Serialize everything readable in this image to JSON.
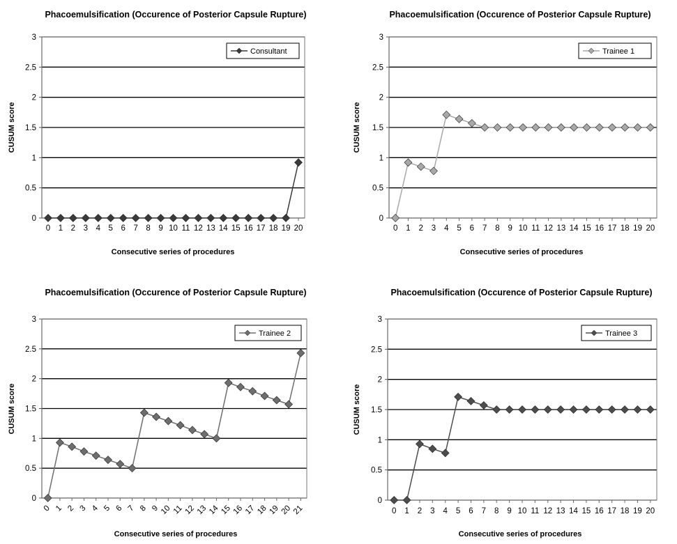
{
  "chart_data": [
    {
      "type": "line",
      "title": "Phacoemulsification (Occurence of Posterior Capsule Rupture)",
      "xlabel": "Consecutive series of procedures",
      "ylabel": "CUSUM score",
      "ylim": [
        0,
        3
      ],
      "yticks": [
        "0",
        "0.5",
        "1",
        "1.5",
        "2",
        "2.5",
        "3"
      ],
      "categories": [
        "0",
        "1",
        "2",
        "3",
        "4",
        "5",
        "6",
        "7",
        "8",
        "9",
        "10",
        "11",
        "12",
        "13",
        "14",
        "15",
        "16",
        "17",
        "18",
        "19",
        "20"
      ],
      "grid": true,
      "legend_position": "top-right",
      "series": [
        {
          "name": "Consultant",
          "color": "#3a3a3a",
          "values": [
            0,
            0,
            0,
            0,
            0,
            0,
            0,
            0,
            0,
            0,
            0,
            0,
            0,
            0,
            0,
            0,
            0,
            0,
            0,
            0,
            0.92
          ]
        }
      ]
    },
    {
      "type": "line",
      "title": "Phacoemulsification (Occurence of Posterior Capsule Rupture)",
      "xlabel": "Consecutive series of procedures",
      "ylabel": "CUSUM  score",
      "ylim": [
        0,
        3
      ],
      "yticks": [
        "0",
        "0.5",
        "1",
        "1.5",
        "2",
        "2.5",
        "3"
      ],
      "categories": [
        "0",
        "1",
        "2",
        "3",
        "4",
        "5",
        "6",
        "7",
        "8",
        "9",
        "10",
        "11",
        "12",
        "13",
        "14",
        "15",
        "16",
        "17",
        "18",
        "19",
        "20"
      ],
      "grid": true,
      "legend_position": "top-right",
      "series": [
        {
          "name": "Trainee 1",
          "color": "#a8a8a8",
          "values": [
            0,
            0.92,
            0.85,
            0.78,
            1.71,
            1.64,
            1.57,
            1.5,
            1.5,
            1.5,
            1.5,
            1.5,
            1.5,
            1.5,
            1.5,
            1.5,
            1.5,
            1.5,
            1.5,
            1.5,
            1.5
          ]
        }
      ]
    },
    {
      "type": "line",
      "title": "Phacoemulsification (Occurence of Posterior Capsule Rupture)",
      "xlabel": "Consecutive series of procedures",
      "ylabel": "CUSUM score",
      "ylim": [
        0,
        3
      ],
      "yticks": [
        "0",
        "0.5",
        "1",
        "1.5",
        "2",
        "2.5",
        "3"
      ],
      "categories": [
        "0",
        "1",
        "2",
        "3",
        "4",
        "5",
        "6",
        "7",
        "8",
        "9",
        "10",
        "11",
        "12",
        "13",
        "14",
        "15",
        "16",
        "17",
        "18",
        "19",
        "20",
        "21"
      ],
      "grid": true,
      "legend_position": "top-right",
      "series": [
        {
          "name": "Trainee 2",
          "color": "#6e6e6e",
          "values": [
            0,
            0.93,
            0.86,
            0.78,
            0.71,
            0.64,
            0.57,
            0.5,
            1.43,
            1.36,
            1.29,
            1.22,
            1.14,
            1.07,
            1.0,
            1.93,
            1.86,
            1.79,
            1.71,
            1.64,
            1.57,
            2.43
          ]
        }
      ]
    },
    {
      "type": "line",
      "title": "Phacoemulsification (Occurence of Posterior Capsule Rupture)",
      "xlabel": "Consecutive series of procedures",
      "ylabel": "CUSUM score",
      "ylim": [
        0,
        3
      ],
      "yticks": [
        "0",
        "0.5",
        "1",
        "1.5",
        "2",
        "2.5",
        "3"
      ],
      "categories": [
        "0",
        "1",
        "2",
        "3",
        "4",
        "5",
        "6",
        "7",
        "8",
        "9",
        "10",
        "11",
        "12",
        "13",
        "14",
        "15",
        "16",
        "17",
        "18",
        "19",
        "20"
      ],
      "grid": true,
      "legend_position": "top-right",
      "series": [
        {
          "name": "Trainee 3",
          "color": "#4d4d4d",
          "values": [
            0,
            0,
            0.93,
            0.85,
            0.78,
            1.71,
            1.64,
            1.57,
            1.5,
            1.5,
            1.5,
            1.5,
            1.5,
            1.5,
            1.5,
            1.5,
            1.5,
            1.5,
            1.5,
            1.5,
            1.5
          ]
        }
      ]
    }
  ]
}
